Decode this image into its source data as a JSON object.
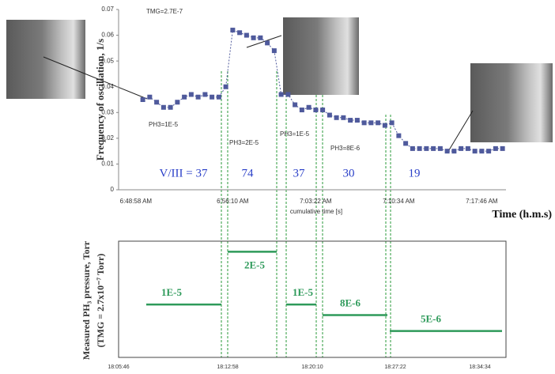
{
  "chart_data": [
    {
      "type": "line",
      "y_label": "Frequency of oscillation, 1/s",
      "x_label": "Time (h.m.s)",
      "x_sublabel": "cumulative time [s]",
      "categories": [
        null,
        null,
        "6:48:58 AM",
        null,
        null,
        null,
        null,
        null,
        null,
        null,
        null,
        null,
        null,
        null,
        null,
        null,
        "6:56:10 AM",
        null,
        null,
        null,
        null,
        null,
        null,
        null,
        null,
        null,
        null,
        null,
        "7:03:22 AM",
        null,
        null,
        null,
        null,
        null,
        null,
        null,
        null,
        null,
        null,
        null,
        "7:10:34 AM",
        null,
        null,
        null,
        null,
        null,
        null,
        null,
        null,
        null,
        null,
        null,
        "7:17:46 AM",
        null,
        null,
        null
      ],
      "series": [
        {
          "name": "Frequency",
          "color": "#4f5a9c",
          "values": [
            null,
            null,
            null,
            0.035,
            0.036,
            0.034,
            0.032,
            0.032,
            0.034,
            0.036,
            0.037,
            0.036,
            0.037,
            0.036,
            0.036,
            0.04,
            0.062,
            0.061,
            0.06,
            0.059,
            0.059,
            0.057,
            0.054,
            0.037,
            0.037,
            0.033,
            0.031,
            0.032,
            0.031,
            0.031,
            0.029,
            0.028,
            0.028,
            0.027,
            0.027,
            0.026,
            0.026,
            0.026,
            0.025,
            0.026,
            0.021,
            0.018,
            0.016,
            0.016,
            0.016,
            0.016,
            0.016,
            0.015,
            0.015,
            0.016,
            0.016,
            0.015,
            0.015,
            0.015,
            0.016,
            0.016
          ]
        }
      ],
      "ylim": [
        0,
        0.07
      ],
      "yticks": [
        0,
        0.01,
        0.02,
        0.03,
        0.04,
        0.05,
        0.06,
        0.07
      ],
      "annotations": [
        "TMG=2.7E-7",
        "PH3=1E-5",
        "PH3=2E-5",
        "PH3=1E-5",
        "PH3=8E-6"
      ],
      "ratio_labels": [
        "V/III = 37",
        "74",
        "37",
        "30",
        "19"
      ]
    },
    {
      "type": "step",
      "y_label": "Measured PH₃ pressure, Torr",
      "y_sublabel": "(TMG = 2.7x10⁻⁷ Torr)",
      "x_tick_labels": [
        "18:05:46",
        "18:12:58",
        "18:20:10",
        "18:27:22",
        "18:34:34"
      ],
      "color": "#2e9a5a",
      "values": [
        1e-05,
        2e-05,
        1e-05,
        8e-06,
        5e-06
      ],
      "value_labels": [
        "1E-5",
        "2E-5",
        "1E-5",
        "8E-6",
        "5E-6"
      ],
      "ylim": [
        0,
        2.2e-05
      ]
    }
  ]
}
